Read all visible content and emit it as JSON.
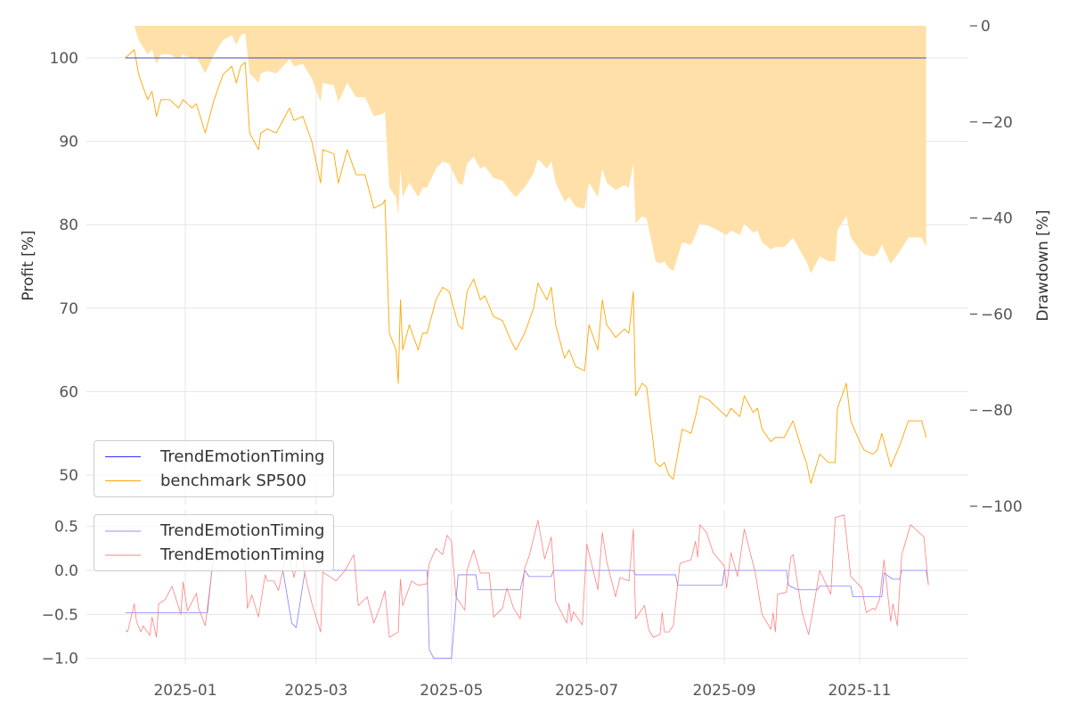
{
  "chart_data": [
    {
      "type": "line",
      "panel": "top",
      "x_unit": "days since 2025-01-01",
      "ylabel": "Profit [%]",
      "ylim": [
        47,
        104
      ],
      "yticks": [
        50,
        60,
        70,
        80,
        90,
        100
      ],
      "ytick_labels": [
        "50",
        "60",
        "70",
        "80",
        "90",
        "100"
      ],
      "y2label": "Drawdown [%]",
      "y2lim": [
        -100,
        0
      ],
      "y2ticks": [
        0,
        -20,
        -40,
        -60,
        -80,
        -100
      ],
      "y2tick_labels": [
        "0",
        "−20",
        "−40",
        "−60",
        "−80",
        "−100"
      ],
      "grid": true,
      "legend_placement": "lower-left",
      "series": [
        {
          "name": "TrendEmotionTiming",
          "color": "#3333ff",
          "x": [
            -27,
            334
          ],
          "y": [
            100,
            100
          ]
        },
        {
          "name": "benchmark SP500",
          "color": "#ffa500",
          "x": [
            -27,
            -23,
            -21,
            -17,
            -15,
            -13,
            -11,
            -7,
            -3,
            -1,
            3,
            5,
            9,
            13,
            17,
            21,
            23,
            25,
            27,
            29,
            33,
            34,
            37,
            41,
            45,
            47,
            49,
            53,
            57,
            61,
            62,
            67,
            69,
            73,
            77,
            81,
            85,
            89,
            90,
            92,
            95,
            96,
            97,
            98,
            101,
            105,
            107,
            109,
            113,
            116,
            119,
            123,
            125,
            127,
            130,
            133,
            135,
            139,
            143,
            147,
            149,
            153,
            157,
            159,
            163,
            165,
            167,
            171,
            173,
            176,
            180,
            182,
            186,
            188,
            190,
            194,
            198,
            200,
            202,
            203,
            206,
            208,
            212,
            214,
            216,
            218,
            220,
            224,
            228,
            230,
            232,
            236,
            238,
            244,
            246,
            250,
            252,
            256,
            258,
            260,
            264,
            266,
            270,
            274,
            278,
            280,
            282,
            286,
            290,
            293,
            294,
            298,
            300,
            304,
            306,
            310,
            312,
            314,
            318,
            322,
            326,
            332,
            334
          ],
          "y": [
            100,
            101,
            98,
            95,
            96,
            93,
            95,
            95,
            94,
            95,
            94,
            94.5,
            91,
            95,
            98,
            99,
            97,
            99,
            99.5,
            91,
            89,
            91,
            91.5,
            91,
            93,
            94,
            92.5,
            93,
            90,
            85,
            89,
            88.5,
            85,
            89,
            86,
            86,
            82,
            82.5,
            83,
            67,
            65,
            61,
            71,
            65,
            68,
            65,
            67,
            67,
            71,
            72.5,
            72,
            68,
            67.5,
            72,
            73.5,
            71,
            71.5,
            69,
            68.5,
            66,
            65,
            67,
            70,
            73,
            71,
            72.5,
            68,
            64,
            65,
            63,
            62.5,
            68,
            65,
            71,
            68,
            66.5,
            67.5,
            67,
            72,
            59.5,
            61,
            60.5,
            51.5,
            51,
            51.5,
            50,
            49.5,
            55.5,
            55,
            57,
            59.5,
            59,
            58.5,
            57,
            58,
            57,
            59.5,
            57.5,
            58,
            55.5,
            54,
            54.5,
            54.5,
            56.5,
            53,
            51.5,
            49,
            52.5,
            51.5,
            51.5,
            58,
            61,
            56.5,
            54,
            53,
            52.5,
            53,
            55,
            51,
            53.5,
            56.5,
            56.5,
            54.5
          ]
        },
        {
          "name": "Drawdown",
          "color": "#ffe0a8",
          "derived_from": "benchmark SP500"
        }
      ]
    },
    {
      "type": "line",
      "panel": "bottom",
      "x_unit": "days since 2025-01-01",
      "ylim": [
        -1.02,
        0.7
      ],
      "yticks": [
        0.5,
        0,
        -0.5,
        -1
      ],
      "ytick_labels": [
        "0.5",
        "0.0",
        "−0.5",
        "−1.0"
      ],
      "xticks": [
        0,
        59,
        120,
        181,
        243,
        304
      ],
      "xtick_labels": [
        "2025-01",
        "2025-03",
        "2025-05",
        "2025-07",
        "2025-09",
        "2025-11"
      ],
      "grid": true,
      "legend_placement": "upper-left",
      "series": [
        {
          "name": "TrendEmotionTiming",
          "color": "#8080ff",
          "x": [
            -27,
            10,
            12,
            44,
            48,
            50,
            54,
            109,
            110,
            112,
            120,
            123,
            131,
            132,
            151,
            153,
            155,
            165,
            166,
            202,
            203,
            221,
            222,
            242,
            243,
            271,
            272,
            276,
            285,
            286,
            300,
            301,
            314,
            315,
            319,
            322,
            323,
            334,
            335
          ],
          "y": [
            -0.48,
            -0.48,
            0,
            0,
            -0.6,
            -0.65,
            0,
            0,
            -0.9,
            -1,
            -1,
            -0.05,
            -0.05,
            -0.22,
            -0.22,
            0,
            -0.07,
            -0.07,
            0,
            0,
            -0.05,
            -0.05,
            -0.17,
            -0.17,
            0,
            0,
            -0.17,
            -0.22,
            -0.22,
            -0.18,
            -0.18,
            -0.3,
            -0.3,
            -0.03,
            -0.1,
            -0.1,
            0,
            0,
            -0.15
          ]
        },
        {
          "name": "TrendEmotionTiming",
          "color": "#ff8080",
          "x": [
            -27,
            -26,
            -23,
            -22,
            -20,
            -19,
            -16,
            -15,
            -13,
            -12,
            -9,
            -6,
            -2,
            -1,
            1,
            5,
            6,
            9,
            12,
            15,
            18,
            20,
            22,
            26,
            28,
            30,
            33,
            36,
            37,
            40,
            42,
            44,
            46,
            49,
            52,
            54,
            57,
            61,
            62,
            68,
            72,
            76,
            78,
            82,
            85,
            88,
            90,
            92,
            96,
            97,
            98,
            102,
            105,
            109,
            110,
            113,
            116,
            118,
            120,
            122,
            126,
            127,
            130,
            133,
            137,
            139,
            143,
            145,
            148,
            151,
            153,
            155,
            159,
            162,
            165,
            167,
            172,
            173,
            174,
            175,
            179,
            181,
            186,
            188,
            190,
            194,
            196,
            200,
            202,
            203,
            207,
            209,
            211,
            214,
            215,
            216,
            218,
            220,
            223,
            228,
            230,
            231,
            232,
            235,
            238,
            243,
            244,
            246,
            249,
            252,
            257,
            260,
            264,
            265,
            266,
            267,
            271,
            273,
            274,
            278,
            281,
            283,
            286,
            291,
            293,
            297,
            300,
            305,
            307,
            310,
            311,
            313,
            315,
            318,
            319,
            321,
            323,
            327,
            333,
            335
          ],
          "y": [
            -0.68,
            -0.7,
            -0.38,
            -0.58,
            -0.7,
            -0.63,
            -0.74,
            -0.53,
            -0.76,
            -0.38,
            -0.33,
            -0.18,
            -0.5,
            -0.13,
            -0.46,
            -0.26,
            -0.43,
            -0.63,
            0,
            0.43,
            0.52,
            0.33,
            0.55,
            0.55,
            -0.43,
            -0.28,
            -0.53,
            -0.05,
            -0.12,
            -0.12,
            -0.23,
            0,
            0.23,
            -0.08,
            0.3,
            -0.05,
            -0.37,
            -0.7,
            -0.02,
            -0.12,
            0,
            0.18,
            -0.4,
            -0.3,
            -0.6,
            -0.4,
            -0.23,
            -0.76,
            -0.7,
            -0.1,
            -0.4,
            -0.12,
            -0.17,
            -0.15,
            0.08,
            0.25,
            0.18,
            0.4,
            0.33,
            -0.3,
            -0.45,
            0,
            0.23,
            -0.03,
            -0.03,
            -0.53,
            -0.43,
            -0.2,
            -0.43,
            -0.55,
            0.03,
            0.16,
            0.57,
            0.13,
            0.38,
            -0.35,
            -0.6,
            -0.37,
            -0.58,
            -0.47,
            -0.62,
            0.3,
            -0.22,
            0.43,
            0.1,
            -0.3,
            -0.08,
            -0.12,
            0.47,
            -0.55,
            -0.4,
            -0.68,
            -0.76,
            -0.73,
            -0.48,
            -0.7,
            -0.7,
            -0.63,
            0.08,
            0.12,
            0.33,
            0.15,
            0.52,
            0.43,
            0.2,
            0.05,
            -0.2,
            0.2,
            -0.07,
            0.47,
            -0.03,
            -0.5,
            -0.67,
            -0.48,
            -0.7,
            -0.27,
            -0.25,
            0.15,
            0.18,
            -0.47,
            -0.73,
            -0.45,
            0,
            -0.27,
            0.6,
            0.63,
            -0.07,
            -0.2,
            -0.48,
            -0.43,
            -0.45,
            -0.33,
            0.12,
            -0.58,
            -0.38,
            -0.63,
            0.18,
            0.52,
            0.38,
            -0.17
          ]
        }
      ]
    }
  ]
}
